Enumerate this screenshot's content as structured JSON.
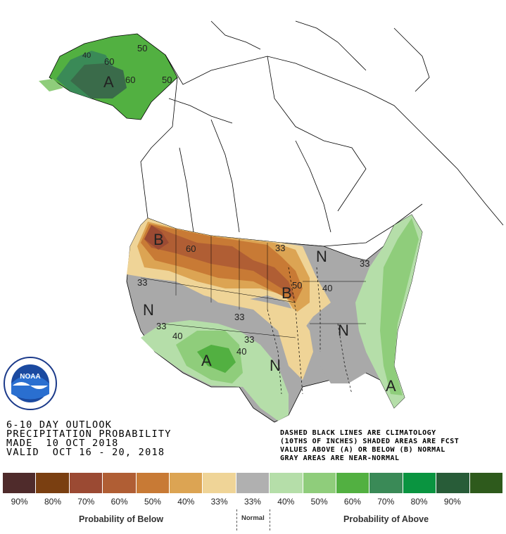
{
  "title_block": {
    "line1": "6-10 DAY OUTLOOK",
    "line2": "PRECIPITATION PROBABILITY",
    "line3": "MADE  10 OCT 2018",
    "line4": "VALID  OCT 16 - 20, 2018"
  },
  "notes": {
    "line1": "DASHED BLACK LINES ARE CLIMATOLOGY",
    "line2": "(10THS OF INCHES) SHADED AREAS ARE FCST",
    "line3": "VALUES ABOVE (A) OR BELOW (B) NORMAL",
    "line4": "GRAY AREAS ARE NEAR-NORMAL"
  },
  "legend": {
    "swatches": [
      {
        "label": "90%",
        "color": "#4f2b2b"
      },
      {
        "label": "80%",
        "color": "#7a3f11"
      },
      {
        "label": "70%",
        "color": "#9b4a33"
      },
      {
        "label": "60%",
        "color": "#b05e34"
      },
      {
        "label": "50%",
        "color": "#c87a35"
      },
      {
        "label": "40%",
        "color": "#dca453"
      },
      {
        "label": "33%",
        "color": "#efd497"
      },
      {
        "label": "33%",
        "color": "#b0b0b0"
      },
      {
        "label": "40%",
        "color": "#b5dea9"
      },
      {
        "label": "50%",
        "color": "#8fcd7b"
      },
      {
        "label": "60%",
        "color": "#52b041"
      },
      {
        "label": "70%",
        "color": "#3a8a57"
      },
      {
        "label": "80%",
        "color": "#0a9440"
      },
      {
        "label": "90%",
        "color": "#285c38"
      },
      {
        "label": "",
        "color": "#2e5a1c"
      }
    ],
    "below_caption": "Probability of Below",
    "normal_caption": "Normal",
    "above_caption": "Probability of Above"
  },
  "map_labels": {
    "alaska_a": "A",
    "contour_50_ak_top": "50",
    "contour_60_ak_left": "60",
    "contour_60_ak_right": "60",
    "contour_50_ak_right": "50",
    "contour_40_ak": "40",
    "nw_b": "B",
    "midwest_b": "B",
    "contour_60_nw": "60",
    "contour_33_nplains": "33",
    "contour_50_mw": "50",
    "contour_40_mw": "40",
    "contour_33_ne": "33",
    "contour_33_west": "33",
    "contour_33_sw": "33",
    "contour_40_sw": "40",
    "contour_33_cplains": "33",
    "contour_33_tx": "33",
    "contour_40_tx": "40",
    "west_n": "N",
    "texas_n": "N",
    "southeast_n": "N",
    "greatlakes_n": "N",
    "sw_a": "A",
    "florida_a": "A"
  },
  "colors": {
    "gray_near_normal": "#a9a9a9",
    "outline": "#000000"
  }
}
